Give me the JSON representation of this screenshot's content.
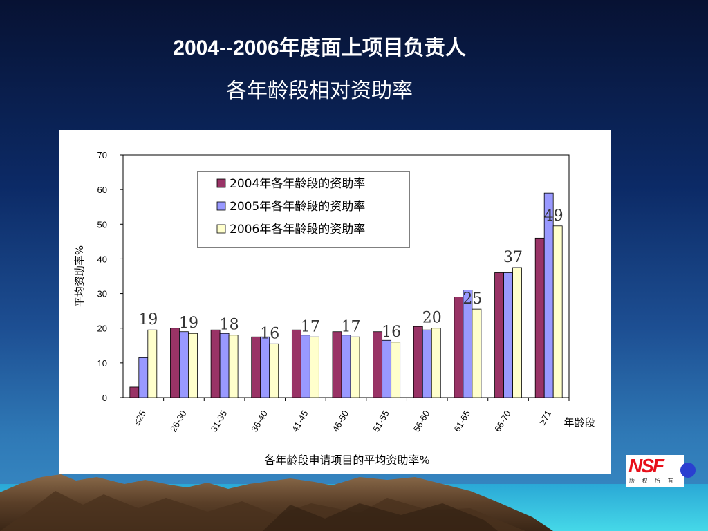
{
  "slide": {
    "title_line1": "2004--2006年度面上项目负责人",
    "title_line2": "各年龄段相对资助率"
  },
  "logo": {
    "text": "NSF",
    "subtext": "版 权 所 有"
  },
  "colors": {
    "series_2004": "#993366",
    "series_2005": "#9999ff",
    "series_2006": "#ffffcc"
  },
  "chart_data": {
    "type": "bar",
    "title": "",
    "ylabel": "平均资助率%",
    "xlabel": "各年龄段申请项目的平均资助率%",
    "x_unit_label": "年龄段",
    "ylim": [
      0,
      70
    ],
    "yticks": [
      0,
      10,
      20,
      30,
      40,
      50,
      60,
      70
    ],
    "grid": false,
    "legend_position": "top-left",
    "categories": [
      "≤25",
      "26-30",
      "31-35",
      "36-40",
      "41-45",
      "46-50",
      "51-55",
      "56-60",
      "61-65",
      "66-70",
      "≥71"
    ],
    "series": [
      {
        "name": "2004年各年龄段的资助率",
        "color": "#993366",
        "values": [
          3,
          20,
          19.5,
          17.5,
          19.5,
          19,
          19,
          20.5,
          29,
          36,
          46
        ]
      },
      {
        "name": "2005年各年龄段的资助率",
        "color": "#9999ff",
        "values": [
          11.5,
          19,
          18.5,
          17.5,
          18,
          18,
          16.5,
          19.5,
          31,
          36,
          59
        ]
      },
      {
        "name": "2006年各年龄段的资助率",
        "color": "#ffffcc",
        "values": [
          19.5,
          18.5,
          18,
          15.5,
          17.5,
          17.5,
          16,
          20,
          25.5,
          37.5,
          49.5
        ]
      }
    ],
    "data_labels_2006": [
      "19",
      "19",
      "18",
      "16",
      "17",
      "17",
      "16",
      "20",
      "25",
      "37",
      "49"
    ]
  }
}
